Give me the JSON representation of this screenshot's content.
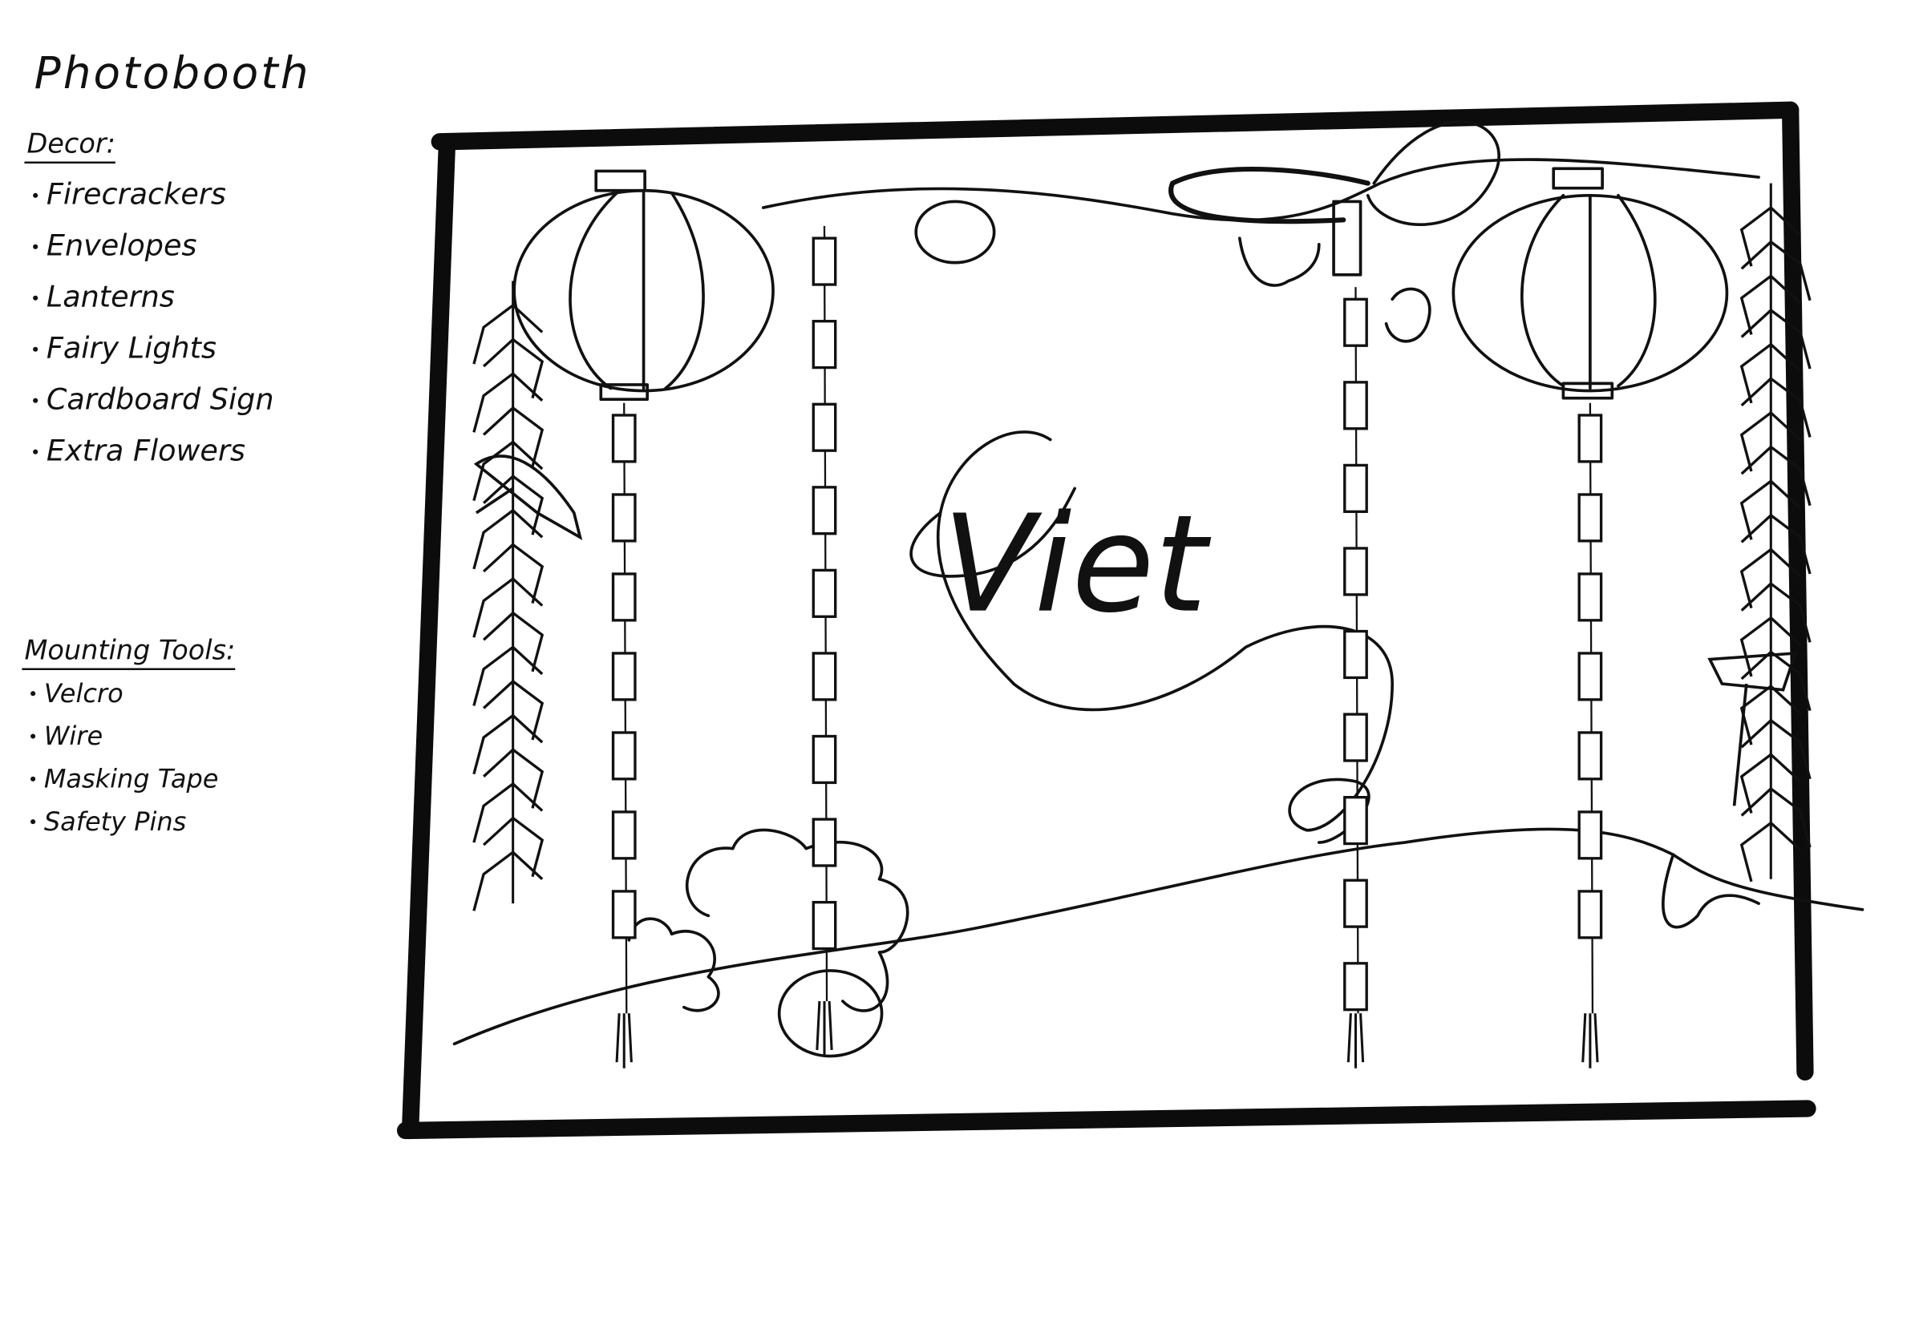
{
  "title": "Photobooth",
  "decor": {
    "heading": "Decor:",
    "items": [
      "Firecrackers",
      "Envelopes",
      "Lanterns",
      "Fairy Lights",
      "Cardboard Sign",
      "Extra Flowers"
    ]
  },
  "mounting_tools": {
    "heading": "Mounting Tools:",
    "items": [
      "Velcro",
      "Wire",
      "Masking Tape",
      "Safety Pins"
    ]
  },
  "sign": {
    "text": "Viet"
  }
}
